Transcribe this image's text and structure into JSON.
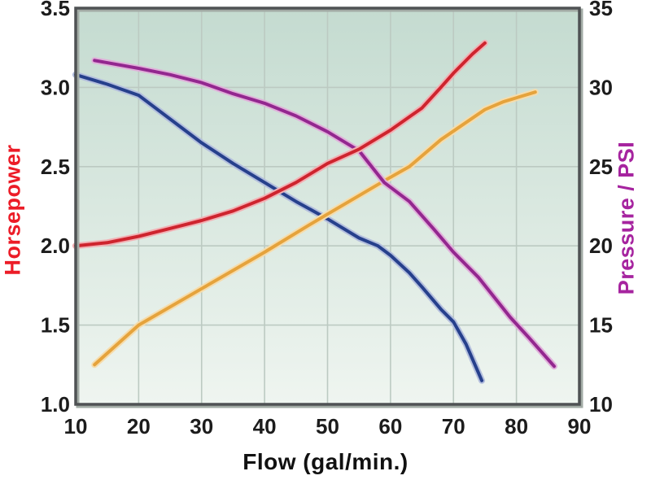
{
  "figure": {
    "xlabel": "Flow (gal/min.)",
    "ylabel_left": "Horsepower",
    "ylabel_right": "Pressure / PSI",
    "colors": {
      "ylabel_left": "#ec1c27",
      "ylabel_right": "#a6249f",
      "xlabel": "#111111",
      "plot_bg_top": "#c4dbd0",
      "plot_bg_bottom": "#eff5f0",
      "gridline": "#bccac2",
      "frame": "#4f5254",
      "frame_shadow": "#a2aba5"
    }
  },
  "chart_data": {
    "type": "line",
    "title": "",
    "xlabel": "Flow (gal/min.)",
    "ylabel_left": "Horsepower",
    "ylabel_right": "Pressure / PSI",
    "grid": true,
    "legend": false,
    "x_axis": {
      "min": 10,
      "max": 90,
      "ticks": [
        10,
        20,
        30,
        40,
        50,
        60,
        70,
        80,
        90
      ],
      "tick_labels": [
        "10",
        "20",
        "30",
        "40",
        "50",
        "60",
        "70",
        "80",
        "90"
      ],
      "gridlines": [
        20,
        30,
        40,
        50,
        60,
        70,
        80
      ]
    },
    "y_left": {
      "min": 1.0,
      "max": 3.5,
      "ticks": [
        3.5,
        3.0,
        2.5,
        2.0,
        1.5,
        1.0
      ],
      "tick_labels": [
        "3.5",
        "3.0",
        "2.5",
        "2.0",
        "1.5",
        "1.0"
      ],
      "gridlines": [
        3.0,
        2.5,
        2.0,
        1.5
      ]
    },
    "y_right": {
      "min": 10,
      "max": 35,
      "ticks": [
        35,
        30,
        25,
        20,
        15,
        10
      ],
      "tick_labels": [
        "35",
        "30",
        "25",
        "20",
        "15",
        "10"
      ]
    },
    "series": [
      {
        "id": "blue-curve",
        "axis": "left",
        "color": "#26408c",
        "halo": "#b3bedd",
        "x": [
          10,
          15,
          20,
          25,
          30,
          35,
          40,
          45,
          50,
          55,
          58,
          60,
          63,
          65,
          68,
          70,
          72,
          74.5
        ],
        "y": [
          3.08,
          3.02,
          2.95,
          2.8,
          2.65,
          2.52,
          2.4,
          2.28,
          2.17,
          2.05,
          2.0,
          1.94,
          1.83,
          1.74,
          1.6,
          1.52,
          1.38,
          1.15
        ]
      },
      {
        "id": "orange-curve",
        "axis": "left",
        "color": "#e5a33c",
        "halo": "#f6dcab",
        "x": [
          13,
          20,
          30,
          40,
          47,
          50,
          59,
          63,
          68,
          75,
          78,
          83
        ],
        "y": [
          1.25,
          1.5,
          1.73,
          1.96,
          2.13,
          2.2,
          2.41,
          2.5,
          2.67,
          2.86,
          2.91,
          2.97
        ]
      },
      {
        "id": "purple-pressure-curve",
        "axis": "right",
        "color": "#93278f",
        "halo": "#e0b0da",
        "x": [
          13,
          20,
          25,
          30,
          35,
          40,
          45,
          50,
          55,
          59,
          63,
          67,
          70,
          74,
          79,
          82,
          86
        ],
        "y": [
          31.7,
          31.2,
          30.8,
          30.3,
          29.6,
          29.0,
          28.2,
          27.2,
          26.0,
          24.0,
          22.8,
          21.0,
          19.6,
          18.0,
          15.5,
          14.2,
          12.4
        ]
      },
      {
        "id": "red-horsepower-curve",
        "axis": "left",
        "color": "#ce242e",
        "halo": "#f2b0b4",
        "x": [
          10,
          15,
          20,
          25,
          30,
          35,
          40,
          45,
          50,
          55,
          60,
          65,
          68,
          70,
          73,
          75
        ],
        "y": [
          2.0,
          2.02,
          2.06,
          2.11,
          2.16,
          2.22,
          2.3,
          2.4,
          2.52,
          2.61,
          2.73,
          2.87,
          3.0,
          3.09,
          3.21,
          3.28
        ]
      }
    ]
  }
}
